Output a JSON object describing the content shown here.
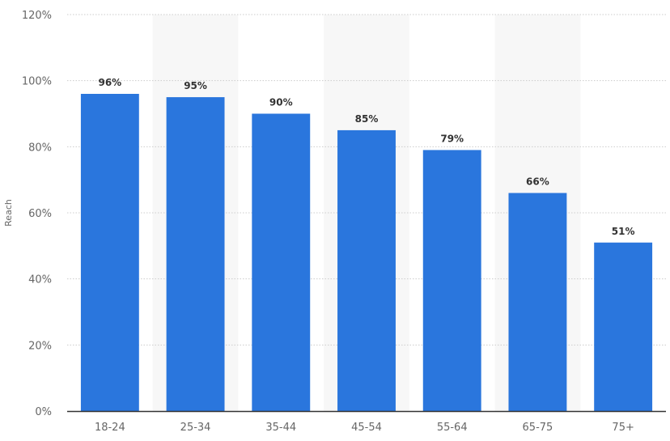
{
  "chart_data": {
    "type": "bar",
    "categories": [
      "18-24",
      "25-34",
      "35-44",
      "45-54",
      "55-64",
      "65-75",
      "75+"
    ],
    "values": [
      96,
      95,
      90,
      85,
      79,
      66,
      51
    ],
    "value_labels": [
      "96%",
      "95%",
      "90%",
      "85%",
      "79%",
      "66%",
      "51%"
    ],
    "ylabel": "Reach",
    "ylim": [
      0,
      120
    ],
    "yticks": [
      0,
      20,
      40,
      60,
      80,
      100,
      120
    ],
    "ytick_labels": [
      "0%",
      "20%",
      "40%",
      "60%",
      "80%",
      "100%",
      "120%"
    ],
    "grid": true,
    "colors": {
      "bar": "#2a76dd",
      "band": "#f7f7f7",
      "grid": "#cccccc",
      "axis": "#333333"
    }
  }
}
